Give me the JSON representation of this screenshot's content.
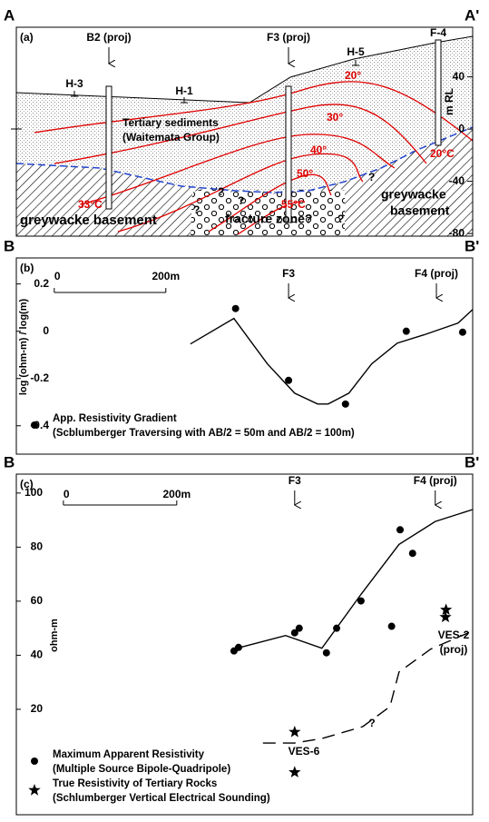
{
  "cross_section": {
    "start_label": "A",
    "end_label": "A'",
    "panel_label": "(a)",
    "wells": [
      "B2 (proj)",
      "F3 (proj)",
      "F-4"
    ],
    "boreholes": [
      "H-3",
      "H-1",
      "H-5"
    ],
    "unit_label": [
      "Tertiary sediments",
      "(Waitemata Group)"
    ],
    "isotherms": [
      "20°",
      "30°",
      "40°",
      "50°"
    ],
    "temperatures": [
      "20°C",
      "33°C",
      "55°C"
    ],
    "rock_labels": [
      "greywacke basement",
      "greywacke",
      "basement",
      "fracture zone?"
    ],
    "question_marks": [
      "?",
      "?",
      "?",
      "?",
      "?"
    ],
    "axis_label": "m RL",
    "ylim": [
      -82,
      78
    ],
    "yticks": [
      40,
      0,
      -40,
      -80
    ]
  },
  "chart_data": [
    {
      "type": "line",
      "panel_label": "(b)",
      "start_label": "B",
      "end_label": "B'",
      "ylabel": "log (ohm-m) / log(m)",
      "xlim": [
        -68,
        750
      ],
      "ylim": [
        -0.52,
        0.31
      ],
      "yticks": [
        0.2,
        0,
        -0.2,
        -0.4
      ],
      "scale_ticks": [
        0,
        {
          "value": 200,
          "label": "200m"
        }
      ],
      "wells": [
        {
          "name": "F3",
          "x": 420
        },
        {
          "name": "F4 (proj)",
          "x": 685
        }
      ],
      "series": [
        {
          "name": "App. Resistivity Gradient",
          "description": "(Scblumberger Traversing with AB/2 = 50m and AB/2 = 100m)",
          "marker": "circle",
          "color": "#000000",
          "x": [
            325,
            420,
            522,
            631,
            732
          ],
          "values": [
            0.096,
            -0.208,
            -0.308,
            0,
            -0.004
          ]
        },
        {
          "marker": "line",
          "color": "#000000",
          "x": [
            244,
            322,
            382,
            431,
            472,
            491,
            528,
            569,
            615,
            663,
            724,
            750
          ],
          "values": [
            -0.054,
            0.054,
            -0.138,
            -0.262,
            -0.308,
            -0.308,
            -0.262,
            -0.138,
            -0.05,
            -0.015,
            0.035,
            0.092
          ]
        }
      ]
    },
    {
      "type": "line",
      "panel_label": "(c)",
      "start_label": "B",
      "end_label": "B'",
      "ylabel": "ohm-m",
      "xlim": [
        -83,
        722
      ],
      "ylim": [
        -19,
        107
      ],
      "yticks": [
        100,
        80,
        60,
        40,
        20
      ],
      "scale_ticks": [
        0,
        {
          "value": 200,
          "label": "200m"
        }
      ],
      "wells": [
        {
          "name": "F3",
          "x": 408
        },
        {
          "name": "F4 (proj)",
          "x": 656
        }
      ],
      "annotations": [
        "VES-6",
        "VES-2",
        "(proj)",
        "?"
      ],
      "series": [
        {
          "name": "Maximum Apparent Resistivity",
          "description": "(Multiple Source Bipole-Quadripole)",
          "marker": "circle",
          "color": "#000000",
          "x": [
            301,
            309,
            408,
            416,
            464,
            482,
            525,
            579,
            594,
            616
          ],
          "values": [
            41.6,
            42.9,
            48.3,
            50,
            40.9,
            50,
            60.1,
            50.7,
            86.4,
            77.7
          ]
        },
        {
          "marker": "line",
          "color": "#000000",
          "x": [
            301,
            392,
            456,
            525,
            592,
            656,
            722
          ],
          "values": [
            42.3,
            47.3,
            42.6,
            62.5,
            81,
            89.5,
            93.9
          ]
        },
        {
          "marker": "dashed",
          "color": "#000000",
          "x": [
            352,
            408,
            456,
            528,
            576,
            592,
            648,
            722
          ],
          "values": [
            7.5,
            7.5,
            9.2,
            13.6,
            21,
            33.8,
            42.3,
            49
          ]
        },
        {
          "name": "True Resistivity of Tertiary Rocks",
          "description": "(Schlumberger Vertical Electrical Sounding)",
          "marker": "star",
          "color": "#000000",
          "x": [
            408,
            408,
            675,
            674
          ],
          "values": [
            11.6,
            -3.3,
            56.8,
            54.1
          ]
        }
      ]
    }
  ]
}
